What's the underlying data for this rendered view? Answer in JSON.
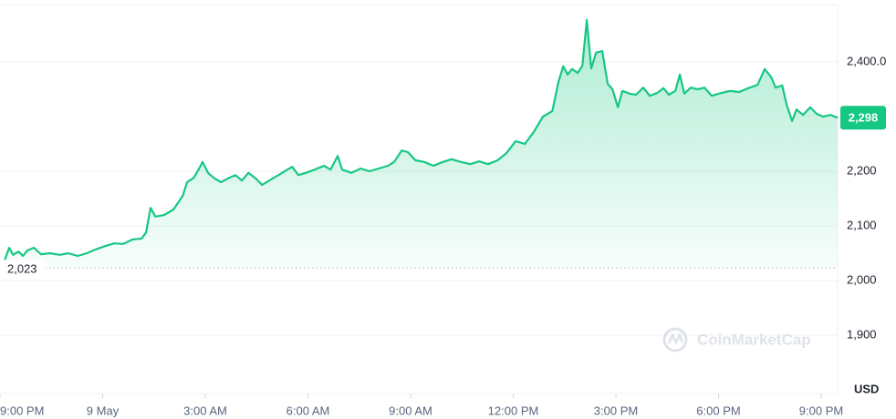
{
  "chart_data": {
    "type": "line",
    "color": "#16c784",
    "grid": true,
    "unit": "USD",
    "watermark": "CoinMarketCap",
    "baseline": {
      "value": 2023,
      "label": "2,023"
    },
    "current": {
      "value": 2298,
      "label": "2,298"
    },
    "xlim": [
      -0.75,
      23.73
    ],
    "ylim": [
      1800,
      2505
    ],
    "xticks": [
      {
        "value": -0.75,
        "label": "9:00 PM"
      },
      {
        "value": 2.25,
        "label": "9 May"
      },
      {
        "value": 5.25,
        "label": "3:00 AM"
      },
      {
        "value": 8.25,
        "label": "6:00 AM"
      },
      {
        "value": 11.25,
        "label": "9:00 AM"
      },
      {
        "value": 14.25,
        "label": "12:00 PM"
      },
      {
        "value": 17.25,
        "label": "3:00 PM"
      },
      {
        "value": 20.25,
        "label": "6:00 PM"
      },
      {
        "value": 23.25,
        "label": "9:00 PM"
      }
    ],
    "yticks": [
      {
        "value": 1900,
        "label": "1,900"
      },
      {
        "value": 2000,
        "label": "2,000"
      },
      {
        "value": 2100,
        "label": "2,100"
      },
      {
        "value": 2200,
        "label": "2,200"
      },
      {
        "value": 2400,
        "label": "2,400.0"
      }
    ],
    "x": [
      -0.61,
      -0.48,
      -0.37,
      -0.21,
      -0.08,
      0.05,
      0.24,
      0.45,
      0.72,
      0.99,
      1.25,
      1.52,
      1.79,
      2.05,
      2.32,
      2.59,
      2.85,
      3.12,
      3.39,
      3.52,
      3.65,
      3.79,
      4.05,
      4.32,
      4.59,
      4.72,
      4.91,
      5.07,
      5.17,
      5.33,
      5.52,
      5.71,
      5.92,
      6.13,
      6.32,
      6.51,
      6.72,
      6.91,
      7.12,
      7.39,
      7.65,
      7.79,
      7.97,
      8.19,
      8.45,
      8.72,
      8.91,
      9.12,
      9.25,
      9.52,
      9.79,
      10.05,
      10.32,
      10.59,
      10.77,
      10.99,
      11.17,
      11.39,
      11.65,
      11.92,
      12.19,
      12.45,
      12.72,
      12.99,
      13.25,
      13.52,
      13.79,
      14.05,
      14.32,
      14.59,
      14.85,
      15.12,
      15.39,
      15.57,
      15.71,
      15.84,
      15.97,
      16.13,
      16.27,
      16.4,
      16.53,
      16.67,
      16.85,
      17.01,
      17.15,
      17.31,
      17.44,
      17.65,
      17.84,
      18.05,
      18.24,
      18.45,
      18.64,
      18.8,
      18.99,
      19.12,
      19.25,
      19.44,
      19.65,
      19.84,
      20.05,
      20.32,
      20.59,
      20.85,
      21.12,
      21.39,
      21.6,
      21.79,
      21.92,
      22.11,
      22.24,
      22.4,
      22.53,
      22.72,
      22.93,
      23.12,
      23.31,
      23.52,
      23.73
    ],
    "values": [
      2038,
      2060,
      2047,
      2053,
      2045,
      2055,
      2060,
      2048,
      2050,
      2047,
      2050,
      2045,
      2050,
      2057,
      2063,
      2068,
      2067,
      2075,
      2077,
      2088,
      2133,
      2117,
      2120,
      2130,
      2155,
      2180,
      2188,
      2205,
      2217,
      2197,
      2187,
      2180,
      2187,
      2193,
      2183,
      2197,
      2187,
      2175,
      2183,
      2193,
      2203,
      2208,
      2193,
      2197,
      2203,
      2210,
      2203,
      2228,
      2203,
      2197,
      2205,
      2200,
      2205,
      2210,
      2217,
      2238,
      2235,
      2220,
      2217,
      2210,
      2217,
      2222,
      2217,
      2213,
      2218,
      2213,
      2220,
      2233,
      2255,
      2250,
      2272,
      2300,
      2310,
      2363,
      2392,
      2377,
      2387,
      2380,
      2393,
      2477,
      2388,
      2417,
      2420,
      2360,
      2350,
      2317,
      2347,
      2342,
      2340,
      2353,
      2338,
      2343,
      2352,
      2340,
      2347,
      2377,
      2342,
      2353,
      2350,
      2353,
      2338,
      2343,
      2347,
      2345,
      2352,
      2358,
      2387,
      2372,
      2353,
      2357,
      2322,
      2292,
      2313,
      2303,
      2317,
      2305,
      2300,
      2303,
      2298
    ]
  }
}
